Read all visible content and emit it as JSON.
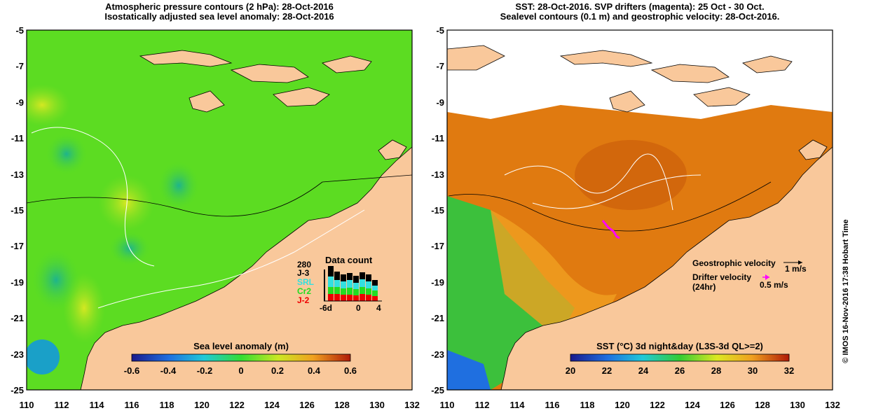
{
  "left_panel": {
    "title_line1": "Atmospheric pressure contours (2 hPa): 28-Oct-2016",
    "title_line2": "Isostatically adjusted sea level anomaly: 28-Oct-2016",
    "colorbar_label": "Sea level anomaly (m)",
    "colorbar_ticks": [
      "-0.6",
      "-0.4",
      "-0.2",
      "0",
      "0.2",
      "0.4",
      "0.6"
    ],
    "data_count": {
      "title": "Data count",
      "max_label": "280",
      "legend": [
        {
          "name": "J-3",
          "color": "#000000"
        },
        {
          "name": "SRL",
          "color": "#33e0e0"
        },
        {
          "name": "Cr2",
          "color": "#22dd22"
        },
        {
          "name": "J-2",
          "color": "#ee0000"
        }
      ],
      "x_ticks": [
        "-6d",
        "0",
        "4"
      ]
    }
  },
  "right_panel": {
    "title_line1": "SST: 28-Oct-2016. SVP drifters (magenta): 25 Oct - 30 Oct.",
    "title_line2": "Sealevel contours (0.1 m) and geostrophic velocity: 28-Oct-2016.",
    "colorbar_label": "SST (°C) 3d night&day (L3S-3d QL>=2)",
    "colorbar_ticks": [
      "20",
      "22",
      "24",
      "26",
      "28",
      "30",
      "32"
    ],
    "legend_geostrophic": "Geostrophic velocity",
    "legend_geostrophic_scale": "1 m/s",
    "legend_drifter_line1": "Drifter velocity",
    "legend_drifter_line2": "(24hr)",
    "legend_drifter_scale": "0.5 m/s",
    "credit": "© IMOS 16-Nov-2016 17:38 Hobart Time"
  },
  "axes": {
    "x_ticks": [
      "110",
      "112",
      "114",
      "116",
      "118",
      "120",
      "122",
      "124",
      "126",
      "128",
      "130",
      "132"
    ],
    "y_ticks": [
      "-5",
      "-7",
      "-9",
      "-11",
      "-13",
      "-15",
      "-17",
      "-19",
      "-21",
      "-23",
      "-25"
    ],
    "x_range": [
      110,
      132
    ],
    "y_range": [
      -25,
      -5
    ]
  },
  "colors": {
    "land": "#f9c89b",
    "sla_map": "#55dd22",
    "sst_map": "#e07a10",
    "drifter": "#ff00ff"
  }
}
